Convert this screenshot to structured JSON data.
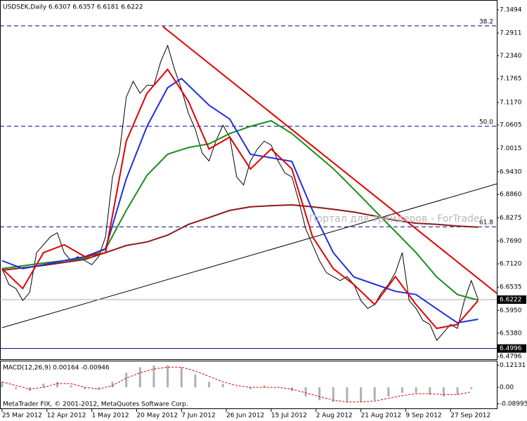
{
  "chart_data": [
    {
      "type": "line",
      "title": "USDSEK,Daily  6.6307 6.6357 6.6181 6.6222",
      "watermark": "Портал для трейдеров - ForTrader",
      "xlim": [
        -0.6,
        143.4
      ],
      "ylim": [
        6.4726,
        7.374
      ],
      "xticks": [
        {
          "value": 0,
          "label": "25 Mar 2012"
        },
        {
          "value": 13,
          "label": "12 Apr 2012"
        },
        {
          "value": 26,
          "label": "1 May 2012"
        },
        {
          "value": 39,
          "label": "20 May 2012"
        },
        {
          "value": 52,
          "label": "7 Jun 2012"
        },
        {
          "value": 65,
          "label": "26 Jun 2012"
        },
        {
          "value": 78,
          "label": "15 Jul 2012"
        },
        {
          "value": 91,
          "label": "2 Aug 2012"
        },
        {
          "value": 104,
          "label": "21 Aug 2012"
        },
        {
          "value": 117,
          "label": "9 Sep 2012"
        },
        {
          "value": 130,
          "label": "27 Sep 2012"
        }
      ],
      "yticks": [
        7.3494,
        7.2911,
        {
          "value": 7.234,
          "label": "7.2340"
        },
        7.1765,
        {
          "value": 7.117,
          "label": "7.1170"
        },
        7.0605,
        7.0015,
        {
          "value": 6.943,
          "label": "6.9430"
        },
        {
          "value": 6.886,
          "label": "6.8860"
        },
        6.8275,
        {
          "value": 6.769,
          "label": "6.7690"
        },
        {
          "value": 6.712,
          "label": "6.7120"
        },
        6.6535,
        {
          "value": 6.595,
          "label": "6.5950"
        },
        {
          "value": 6.538,
          "label": "6.5380"
        },
        6.4796
      ],
      "markers": [
        6.6222,
        6.4996
      ],
      "fib_levels": [
        {
          "level": "38.2",
          "price": 7.309
        },
        {
          "level": "50.0",
          "price": 7.057
        },
        {
          "level": "61.8",
          "price": 6.805
        }
      ],
      "series": [
        {
          "color": "#000000",
          "x": [
            0,
            2,
            4,
            6,
            8,
            10,
            12,
            14,
            16,
            18,
            20,
            22,
            24,
            26,
            28,
            30,
            32,
            34,
            36,
            38,
            40,
            42,
            44,
            46,
            48,
            50,
            52,
            54,
            56,
            58,
            60,
            62,
            64,
            66,
            68,
            70,
            72,
            74,
            76,
            78,
            80,
            82,
            84,
            86,
            88,
            90,
            92,
            94,
            96,
            98,
            100,
            102,
            104,
            106,
            108,
            110,
            112,
            114,
            116,
            118,
            120,
            122,
            124,
            126,
            128,
            130,
            132,
            134,
            136,
            138
          ],
          "values": [
            6.7,
            6.66,
            6.65,
            6.62,
            6.64,
            6.74,
            6.76,
            6.78,
            6.79,
            6.74,
            6.72,
            6.73,
            6.72,
            6.71,
            6.73,
            6.78,
            6.93,
            6.99,
            7.13,
            7.17,
            7.14,
            7.16,
            7.16,
            7.22,
            7.26,
            7.2,
            7.15,
            7.09,
            7.05,
            6.99,
            6.97,
            7.02,
            7.06,
            7.03,
            6.93,
            6.91,
            6.97,
            7.0,
            7.02,
            7.01,
            6.97,
            6.94,
            6.93,
            6.87,
            6.8,
            6.76,
            6.72,
            6.69,
            6.68,
            6.67,
            6.68,
            6.66,
            6.62,
            6.6,
            6.61,
            6.64,
            6.66,
            6.69,
            6.74,
            6.62,
            6.6,
            6.57,
            6.56,
            6.52,
            6.54,
            6.56,
            6.55,
            6.62,
            6.67,
            6.6222
          ]
        },
        {
          "color": "#8b1a1a",
          "x": [
            0,
            12,
            24,
            30,
            36,
            42,
            48,
            54,
            60,
            66,
            72,
            78,
            84,
            90,
            96,
            102,
            108,
            114,
            120,
            126,
            132,
            138
          ],
          "values": [
            6.696,
            6.708,
            6.723,
            6.74,
            6.758,
            6.767,
            6.784,
            6.811,
            6.828,
            6.846,
            6.855,
            6.858,
            6.86,
            6.855,
            6.849,
            6.842,
            6.832,
            6.821,
            6.814,
            6.811,
            6.807,
            6.804
          ]
        },
        {
          "color": "#1c8c1c",
          "x": [
            0,
            12,
            24,
            30,
            36,
            42,
            48,
            54,
            60,
            66,
            72,
            78,
            84,
            90,
            96,
            102,
            108,
            114,
            120,
            126,
            132,
            138
          ],
          "values": [
            6.7,
            6.714,
            6.726,
            6.749,
            6.846,
            6.934,
            6.987,
            7.004,
            7.013,
            7.039,
            7.057,
            7.071,
            7.039,
            6.995,
            6.951,
            6.899,
            6.846,
            6.793,
            6.74,
            6.679,
            6.635,
            6.621
          ]
        },
        {
          "color": "#1f2fe0",
          "x": [
            0,
            6,
            12,
            18,
            24,
            30,
            36,
            42,
            48,
            52,
            60,
            66,
            72,
            78,
            84,
            90,
            96,
            102,
            108,
            114,
            120,
            126,
            132,
            138
          ],
          "values": [
            6.72,
            6.7,
            6.71,
            6.72,
            6.73,
            6.75,
            6.925,
            7.057,
            7.154,
            7.177,
            7.11,
            7.075,
            6.987,
            6.978,
            6.969,
            6.846,
            6.74,
            6.679,
            6.661,
            6.643,
            6.635,
            6.599,
            6.564,
            6.573
          ]
        },
        {
          "color": "#e00000",
          "x": [
            0,
            6,
            12,
            18,
            24,
            30,
            36,
            42,
            48,
            54,
            60,
            66,
            72,
            78,
            84,
            90,
            96,
            102,
            108,
            114,
            120,
            126,
            132,
            138
          ],
          "values": [
            6.7,
            6.65,
            6.74,
            6.76,
            6.73,
            6.74,
            7.02,
            7.14,
            7.2,
            7.12,
            7.0,
            7.03,
            6.95,
            7.0,
            6.95,
            6.78,
            6.7,
            6.66,
            6.61,
            6.68,
            6.61,
            6.55,
            6.56,
            6.62
          ]
        }
      ]
    },
    {
      "type": "bar",
      "title": "MACD(12,26,9) 0.00164 -0.00946",
      "footer": "MetaTrader FIX, © 2001-2012, MetaQuotes Software Corp.",
      "xlim": [
        -0.6,
        143.4
      ],
      "ylim": [
        -0.115,
        0.142
      ],
      "yticks": [
        0.12131,
        {
          "value": 0,
          "label": "0.00"
        },
        -0.08995
      ],
      "x": [
        0,
        4,
        8,
        12,
        16,
        20,
        24,
        28,
        32,
        36,
        40,
        44,
        48,
        52,
        56,
        60,
        64,
        68,
        72,
        76,
        80,
        84,
        88,
        92,
        96,
        100,
        104,
        108,
        112,
        116,
        120,
        124,
        128,
        132,
        136
      ],
      "values": [
        0.03,
        -0.01,
        -0.02,
        0.02,
        0.03,
        0.01,
        -0.01,
        -0.01,
        0.03,
        0.08,
        0.11,
        0.12,
        0.12,
        0.11,
        0.07,
        0.03,
        0.02,
        0.0,
        -0.01,
        0.01,
        0.0,
        -0.02,
        -0.05,
        -0.07,
        -0.08,
        -0.08,
        -0.08,
        -0.07,
        -0.05,
        -0.03,
        -0.03,
        -0.04,
        -0.05,
        -0.04,
        -0.01
      ],
      "color": "#b0b0b0",
      "signal": {
        "color": "#e00000",
        "values": [
          0.03,
          0.01,
          -0.01,
          0.0,
          0.02,
          0.02,
          0.0,
          -0.01,
          0.01,
          0.05,
          0.08,
          0.1,
          0.11,
          0.11,
          0.09,
          0.06,
          0.03,
          0.01,
          0.0,
          0.0,
          0.0,
          -0.01,
          -0.03,
          -0.05,
          -0.07,
          -0.08,
          -0.08,
          -0.075,
          -0.06,
          -0.045,
          -0.035,
          -0.035,
          -0.04,
          -0.04,
          -0.025
        ]
      }
    }
  ]
}
